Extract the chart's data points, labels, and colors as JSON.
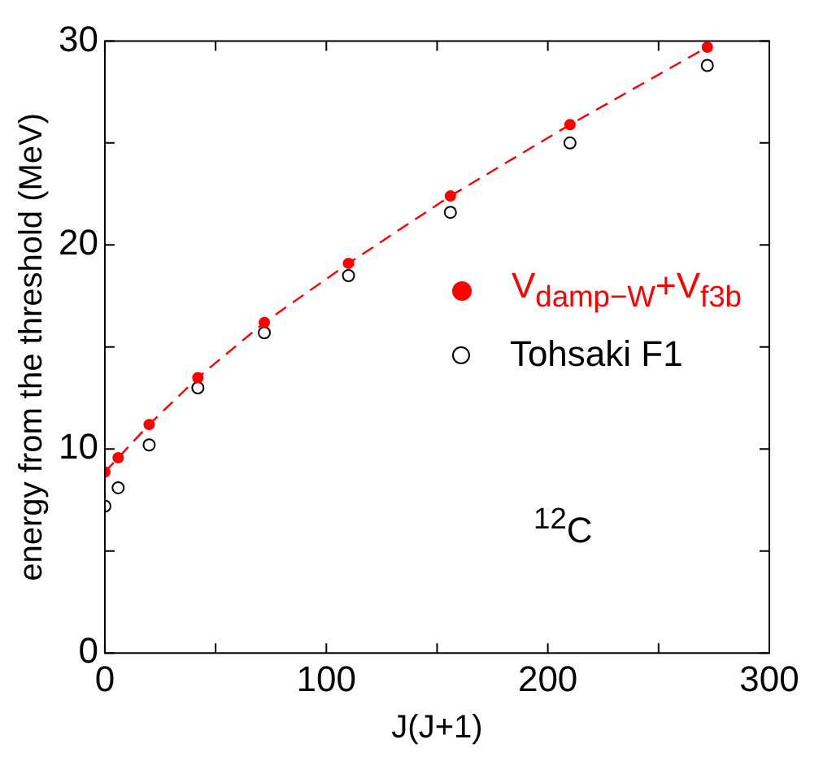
{
  "chart_data": {
    "type": "scatter",
    "xlabel": "J(J+1)",
    "ylabel": "energy from the threshold (MeV)",
    "x": [
      0,
      6,
      20,
      42,
      72,
      110,
      156,
      210,
      272
    ],
    "series": [
      {
        "name": "V$_{damp−W}$+V$_{f3b}$",
        "color": "#ff0000",
        "type": "line",
        "line_style": "dashed",
        "marker": "circle",
        "values": [
          8.87,
          9.57,
          11.2,
          13.5,
          16.2,
          19.1,
          22.4,
          25.9,
          29.7
        ]
      },
      {
        "name": "Tohsaki F1",
        "color": "#000000",
        "marker": "circle",
        "values": [
          7.2,
          8.1,
          10.2,
          13.0,
          15.7,
          18.5,
          21.6,
          25.0,
          28.8
        ]
      }
    ],
    "xlim": [
      0,
      300
    ],
    "xticks": [
      0,
      {
        "value": 50,
        "label": null
      },
      100,
      {
        "value": 150,
        "label": null
      },
      200,
      {
        "value": 250,
        "label": null
      },
      300
    ],
    "ylim": [
      0,
      30
    ],
    "yticks": [
      0,
      {
        "value": 5,
        "label": null
      },
      10,
      {
        "value": 15,
        "label": null
      },
      20,
      {
        "value": 25,
        "label": null
      },
      30
    ],
    "grid": false,
    "legend": "right",
    "annotations": [
      "$^{12}$C"
    ]
  }
}
